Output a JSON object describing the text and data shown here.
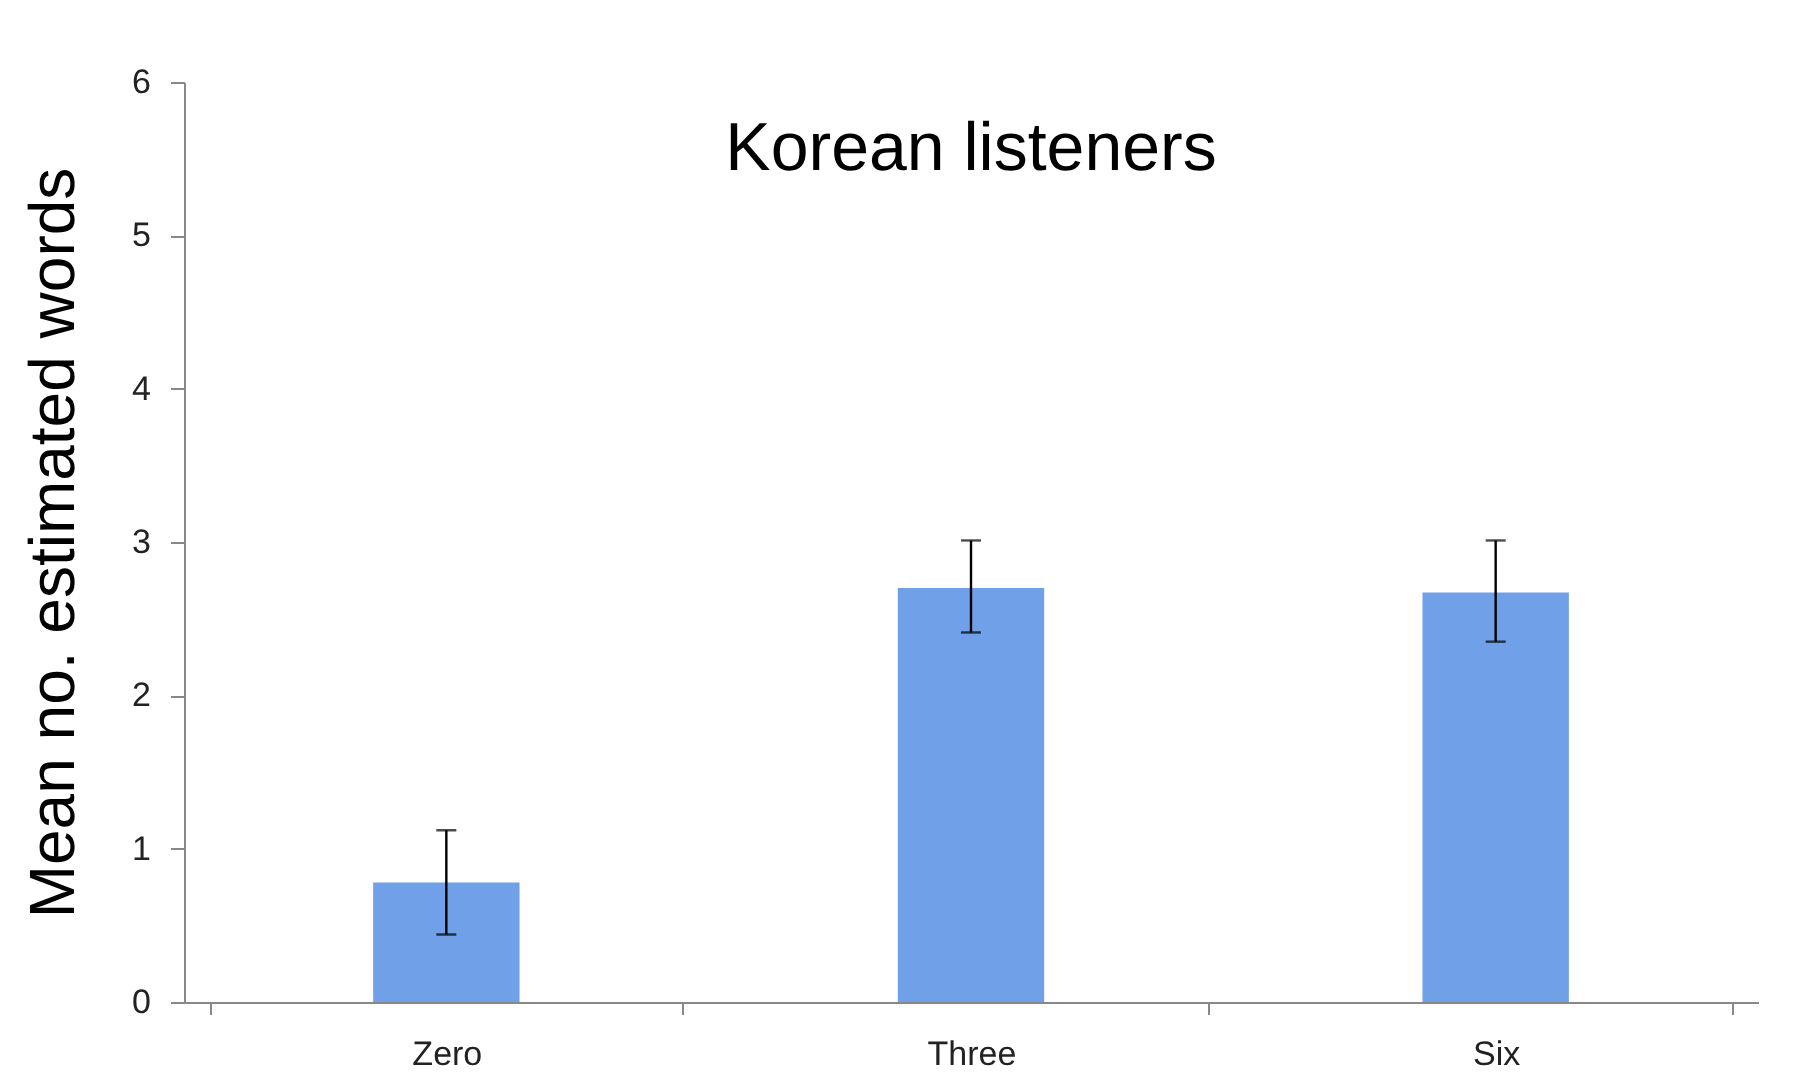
{
  "chart_data": {
    "type": "bar",
    "title": "Korean listeners",
    "ylabel": "Mean no. estimated words",
    "categories": [
      "Zero",
      "Three",
      "Six"
    ],
    "values": [
      0.78,
      2.7,
      2.67
    ],
    "errors": [
      [
        0.44,
        1.12
      ],
      [
        2.41,
        3.01
      ],
      [
        2.35,
        3.01
      ]
    ],
    "color": "#6fa0e8",
    "ylim": [
      0,
      6
    ],
    "yticks": [
      0,
      1,
      2,
      3,
      4,
      5,
      6
    ],
    "grid": false
  }
}
